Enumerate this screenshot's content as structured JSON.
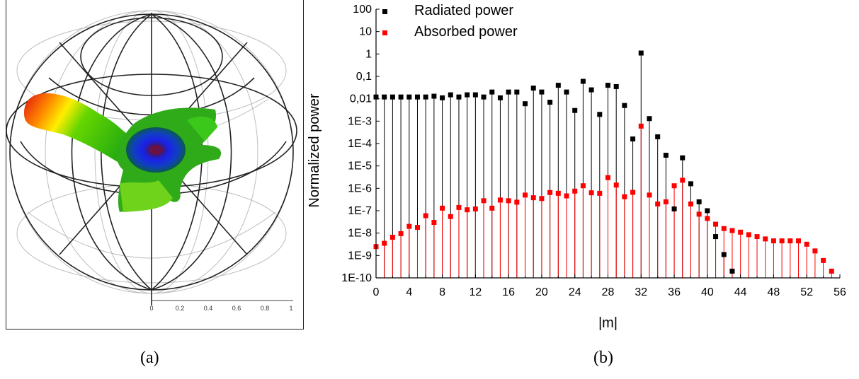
{
  "panel_a": {
    "caption": "(a)",
    "scale_ticks": [
      "0",
      "0.2",
      "0.4",
      "0.6",
      "0.8",
      "1"
    ]
  },
  "panel_b": {
    "caption": "(b)"
  },
  "colors": {
    "radiated": "#000000",
    "absorbed": "#ff0000"
  },
  "chart_data": {
    "type": "scatter",
    "title": "",
    "xlabel": "|m|",
    "ylabel": "Normalized power",
    "xlim": [
      0,
      56
    ],
    "ylim": [
      1e-10,
      100
    ],
    "yscale": "log",
    "x_ticks": [
      "0",
      "4",
      "8",
      "12",
      "16",
      "20",
      "24",
      "28",
      "32",
      "36",
      "40",
      "44",
      "48",
      "52",
      "56"
    ],
    "y_ticks": [
      "1E-10",
      "1E-9",
      "1E-8",
      "1E-7",
      "1E-6",
      "1E-5",
      "1E-4",
      "1E-3",
      "0,01",
      "0,1",
      "1",
      "10",
      "100"
    ],
    "legend_position": "top-left",
    "drop_lines": true,
    "series": [
      {
        "name": "Radiated power",
        "color": "#000000",
        "x": [
          0,
          1,
          2,
          3,
          4,
          5,
          6,
          7,
          8,
          9,
          10,
          11,
          12,
          13,
          14,
          15,
          16,
          17,
          18,
          19,
          20,
          21,
          22,
          23,
          24,
          25,
          26,
          27,
          28,
          29,
          30,
          31,
          32,
          33,
          34,
          35,
          36,
          37,
          38,
          39,
          40,
          41,
          42,
          43
        ],
        "y": [
          0.012,
          0.012,
          0.012,
          0.012,
          0.012,
          0.012,
          0.012,
          0.013,
          0.011,
          0.015,
          0.012,
          0.015,
          0.015,
          0.012,
          0.02,
          0.011,
          0.02,
          0.02,
          0.006,
          0.03,
          0.02,
          0.007,
          0.04,
          0.02,
          0.003,
          0.06,
          0.025,
          0.002,
          0.04,
          0.035,
          0.005,
          0.00016,
          1.1,
          0.0013,
          0.0002,
          3e-05,
          1.2e-07,
          2.3e-05,
          1.6e-06,
          2.5e-07,
          1e-07,
          7e-09,
          1.1e-09,
          2e-10
        ]
      },
      {
        "name": "Absorbed power",
        "color": "#ff0000",
        "x": [
          0,
          1,
          2,
          3,
          4,
          5,
          6,
          7,
          8,
          9,
          10,
          11,
          12,
          13,
          14,
          15,
          16,
          17,
          18,
          19,
          20,
          21,
          22,
          23,
          24,
          25,
          26,
          27,
          28,
          29,
          30,
          31,
          32,
          33,
          34,
          35,
          36,
          37,
          38,
          39,
          40,
          41,
          42,
          43,
          44,
          45,
          46,
          47,
          48,
          49,
          50,
          51,
          52,
          53,
          54,
          55
        ],
        "y": [
          2.5e-09,
          3.5e-09,
          6.5e-09,
          9.5e-09,
          2e-08,
          1.8e-08,
          6e-08,
          3e-08,
          1.3e-07,
          5.5e-08,
          1.4e-07,
          1.1e-07,
          1.2e-07,
          2.8e-07,
          1.3e-07,
          3e-07,
          2.8e-07,
          2.4e-07,
          5e-07,
          3.8e-07,
          3.5e-07,
          6.5e-07,
          6e-07,
          4.6e-07,
          7.5e-07,
          1.3e-06,
          6.3e-07,
          6e-07,
          3e-06,
          1.4e-06,
          4.2e-07,
          6.6e-07,
          0.0006,
          5e-07,
          2e-07,
          2.5e-07,
          1.3e-06,
          2.3e-06,
          2e-07,
          7e-08,
          4.5e-08,
          2.5e-08,
          1.6e-08,
          1.3e-08,
          1.1e-08,
          8.5e-09,
          7e-09,
          5.5e-09,
          4.5e-09,
          4.5e-09,
          4.5e-09,
          4.5e-09,
          3.2e-09,
          1.6e-09,
          6e-10,
          2e-10
        ]
      }
    ]
  }
}
